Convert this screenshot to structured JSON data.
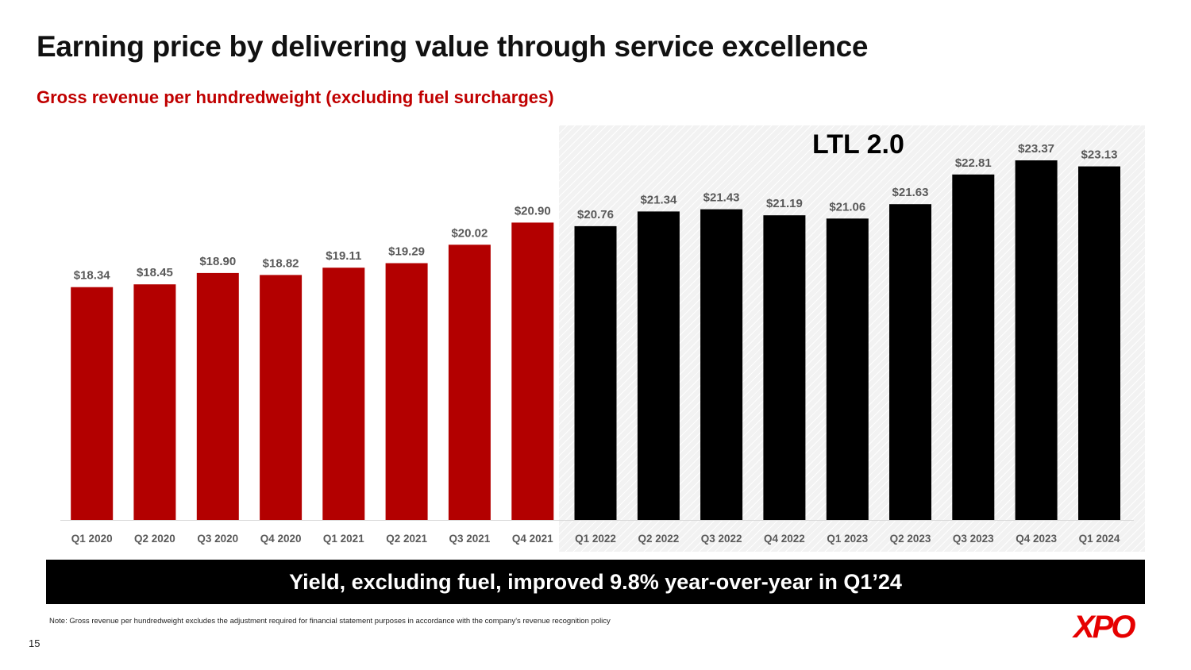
{
  "slide": {
    "title": "Earning price by delivering value through service excellence",
    "subtitle": "Gross revenue per hundredweight (excluding fuel surcharges)",
    "ltl_label": "LTL 2.0",
    "banner": "Yield, excluding fuel, improved 9.8% year-over-year in Q1’24",
    "footnote": "Note: Gross revenue per hundredweight excludes the adjustment required for financial statement purposes in accordance with the company's revenue recognition policy",
    "page_number": "15",
    "logo": "XPO"
  },
  "colors": {
    "pre_ltl": "#b30000",
    "ltl": "#000000",
    "title": "#111111",
    "subtitle": "#c00000",
    "label": "#595959",
    "logo": "#e60000"
  },
  "chart_data": {
    "type": "bar",
    "categories": [
      "Q1 2020",
      "Q2 2020",
      "Q3 2020",
      "Q4 2020",
      "Q1 2021",
      "Q2 2021",
      "Q3 2021",
      "Q4 2021",
      "Q1 2022",
      "Q2 2022",
      "Q3 2022",
      "Q4 2022",
      "Q1 2023",
      "Q2 2023",
      "Q3 2023",
      "Q4 2023",
      "Q1 2024"
    ],
    "values": [
      18.34,
      18.45,
      18.9,
      18.82,
      19.11,
      19.29,
      20.02,
      20.9,
      20.76,
      21.34,
      21.43,
      21.19,
      21.06,
      21.63,
      22.81,
      23.37,
      23.13
    ],
    "labels": [
      "$18.34",
      "$18.45",
      "$18.90",
      "$18.82",
      "$19.11",
      "$19.29",
      "$20.02",
      "$20.90",
      "$20.76",
      "$21.34",
      "$21.43",
      "$21.19",
      "$21.06",
      "$21.63",
      "$22.81",
      "$23.37",
      "$23.13"
    ],
    "series_color_split": {
      "highlight_from_category": "Q1 2022"
    },
    "ylim": [
      9.1,
      23.37
    ],
    "title": "Gross revenue per hundredweight (excluding fuel surcharges)",
    "xlabel": "",
    "ylabel": "",
    "grid": false,
    "legend": "none"
  }
}
